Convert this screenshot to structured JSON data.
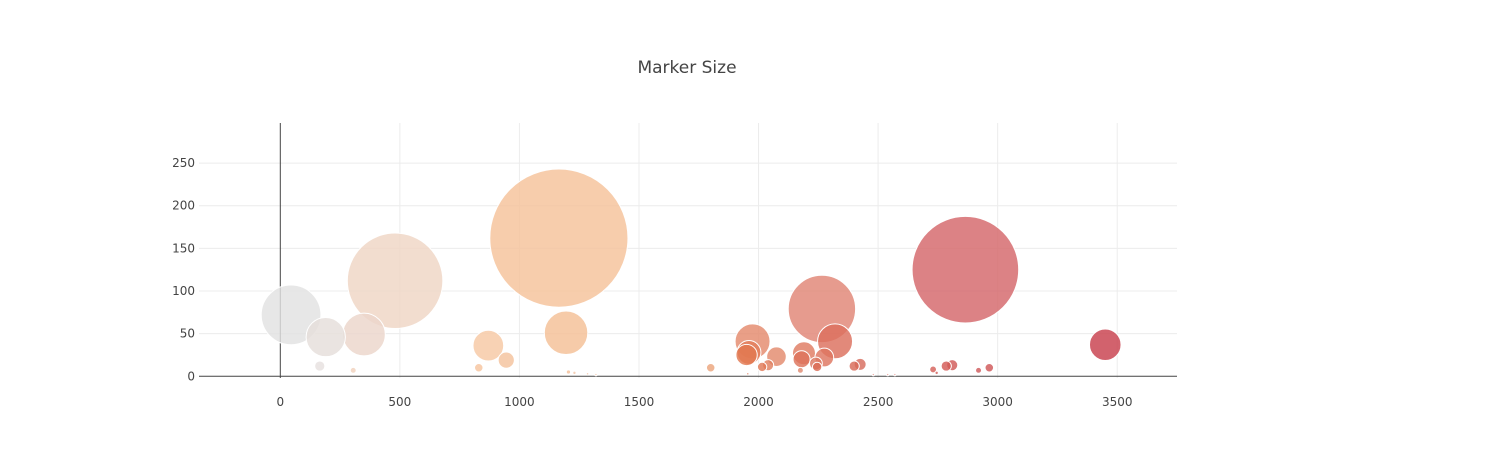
{
  "chart_data": {
    "type": "scatter",
    "title": "Marker Size",
    "xlabel": "",
    "ylabel": "",
    "xlim": [
      -340,
      3750
    ],
    "ylim": [
      -2,
      297
    ],
    "xticks": [
      0,
      500,
      1000,
      1500,
      2000,
      2500,
      3000,
      3500
    ],
    "yticks": [
      0,
      50,
      100,
      150,
      200,
      250
    ],
    "grid": true,
    "legend": "none",
    "colorscale": [
      "#e6e6e6",
      "#f5c29a",
      "#e07a5a",
      "#c8404d"
    ],
    "points": [
      {
        "x": 45,
        "y": 72,
        "size": 70,
        "color": "#e2e2e2"
      },
      {
        "x": 190,
        "y": 46,
        "size": 46,
        "color": "#e5dedb"
      },
      {
        "x": 350,
        "y": 49,
        "size": 50,
        "color": "#ecd6cb"
      },
      {
        "x": 480,
        "y": 112,
        "size": 112,
        "color": "#efd5c5"
      },
      {
        "x": 165,
        "y": 12,
        "size": 12,
        "color": "#e6e1df"
      },
      {
        "x": 305,
        "y": 7,
        "size": 7,
        "color": "#f1d2bd"
      },
      {
        "x": 870,
        "y": 36,
        "size": 36,
        "color": "#f6c8a3"
      },
      {
        "x": 945,
        "y": 19,
        "size": 19,
        "color": "#f4c29c"
      },
      {
        "x": 830,
        "y": 10,
        "size": 10,
        "color": "#f6c59f"
      },
      {
        "x": 1165,
        "y": 162,
        "size": 162,
        "color": "#f5c29a"
      },
      {
        "x": 1195,
        "y": 51,
        "size": 51,
        "color": "#f4bf96"
      },
      {
        "x": 1205,
        "y": 5,
        "size": 5,
        "color": "#f4c09a"
      },
      {
        "x": 1230,
        "y": 4,
        "size": 4,
        "color": "#f2c6a8"
      },
      {
        "x": 1285,
        "y": 3,
        "size": 3,
        "color": "#f3c6aa"
      },
      {
        "x": 1320,
        "y": 2,
        "size": 2,
        "color": "#f3c6aa"
      },
      {
        "x": 1800,
        "y": 10,
        "size": 10,
        "color": "#eba57c"
      },
      {
        "x": 1975,
        "y": 41,
        "size": 41,
        "color": "#e48a6c"
      },
      {
        "x": 1960,
        "y": 28,
        "size": 28,
        "color": "#e37e5c"
      },
      {
        "x": 1950,
        "y": 25,
        "size": 25,
        "color": "#e2774f"
      },
      {
        "x": 2015,
        "y": 11,
        "size": 11,
        "color": "#e07a58"
      },
      {
        "x": 2040,
        "y": 13,
        "size": 13,
        "color": "#e08060"
      },
      {
        "x": 2075,
        "y": 23,
        "size": 23,
        "color": "#e38a6c"
      },
      {
        "x": 1955,
        "y": 3,
        "size": 3,
        "color": "#e38d70"
      },
      {
        "x": 2265,
        "y": 79,
        "size": 79,
        "color": "#e08575"
      },
      {
        "x": 2320,
        "y": 41,
        "size": 41,
        "color": "#dc6f5d"
      },
      {
        "x": 2190,
        "y": 27,
        "size": 27,
        "color": "#df7b62"
      },
      {
        "x": 2180,
        "y": 20,
        "size": 20,
        "color": "#dd735a"
      },
      {
        "x": 2275,
        "y": 22,
        "size": 22,
        "color": "#de755f"
      },
      {
        "x": 2240,
        "y": 15,
        "size": 15,
        "color": "#dc7a64"
      },
      {
        "x": 2245,
        "y": 11,
        "size": 11,
        "color": "#db6d55"
      },
      {
        "x": 2175,
        "y": 7,
        "size": 7,
        "color": "#e08a70"
      },
      {
        "x": 2400,
        "y": 12,
        "size": 12,
        "color": "#d86a58"
      },
      {
        "x": 2425,
        "y": 14,
        "size": 14,
        "color": "#d76d5e"
      },
      {
        "x": 2480,
        "y": 2,
        "size": 2,
        "color": "#e99c95"
      },
      {
        "x": 2540,
        "y": 2,
        "size": 2,
        "color": "#e9a09a"
      },
      {
        "x": 2570,
        "y": 2,
        "size": 2,
        "color": "#e9a09a"
      },
      {
        "x": 2865,
        "y": 125,
        "size": 125,
        "color": "#d4676a"
      },
      {
        "x": 2730,
        "y": 8,
        "size": 8,
        "color": "#d6615a"
      },
      {
        "x": 2785,
        "y": 12,
        "size": 12,
        "color": "#d35a55"
      },
      {
        "x": 2810,
        "y": 13,
        "size": 13,
        "color": "#d15a58"
      },
      {
        "x": 2745,
        "y": 4,
        "size": 4,
        "color": "#d05e5a"
      },
      {
        "x": 2920,
        "y": 7,
        "size": 7,
        "color": "#cf5a5b"
      },
      {
        "x": 2965,
        "y": 10,
        "size": 10,
        "color": "#d05758"
      },
      {
        "x": 3450,
        "y": 37,
        "size": 37,
        "color": "#c8404d"
      }
    ]
  }
}
